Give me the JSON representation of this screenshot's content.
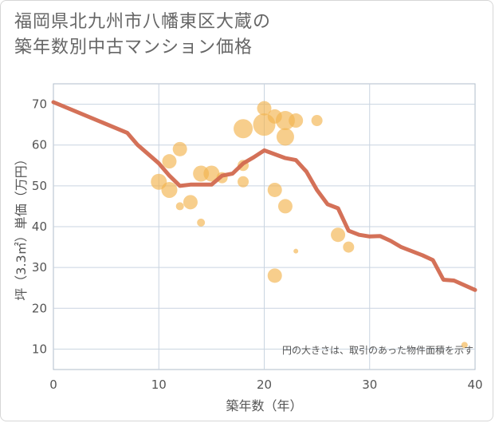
{
  "chart_data": {
    "type": "scatter",
    "title_line1": "福岡県北九州市八幡東区大蔵の",
    "title_line2": "築年数別中古マンション価格",
    "xlabel": "築年数（年）",
    "ylabel": "坪（3.3㎡）単価（万円）",
    "xlim": [
      0,
      40
    ],
    "ylim": [
      5,
      75
    ],
    "xticks": [
      "0",
      "10",
      "20",
      "30",
      "40"
    ],
    "yticks": [
      "10",
      "20",
      "30",
      "40",
      "50",
      "60",
      "70"
    ],
    "note": "円の大きさは、取引のあった物件面積を示す",
    "grid": true,
    "colors": {
      "bubble": "#f2b44f",
      "line": "#d2694f",
      "grid": "#c9d4e0",
      "frame": "#b0bccb"
    },
    "bubbles": [
      {
        "x": 10,
        "y": 51,
        "size": 10
      },
      {
        "x": 11,
        "y": 56,
        "size": 9
      },
      {
        "x": 11,
        "y": 49,
        "size": 10
      },
      {
        "x": 12,
        "y": 59,
        "size": 9
      },
      {
        "x": 12,
        "y": 45,
        "size": 5
      },
      {
        "x": 13,
        "y": 46,
        "size": 9
      },
      {
        "x": 14,
        "y": 53,
        "size": 10
      },
      {
        "x": 14,
        "y": 41,
        "size": 5
      },
      {
        "x": 15,
        "y": 53,
        "size": 10
      },
      {
        "x": 16,
        "y": 52,
        "size": 7
      },
      {
        "x": 18,
        "y": 64,
        "size": 12
      },
      {
        "x": 18,
        "y": 55,
        "size": 7
      },
      {
        "x": 18,
        "y": 51,
        "size": 7
      },
      {
        "x": 20,
        "y": 69,
        "size": 9
      },
      {
        "x": 20,
        "y": 65,
        "size": 14
      },
      {
        "x": 21,
        "y": 67,
        "size": 9
      },
      {
        "x": 21,
        "y": 49,
        "size": 9
      },
      {
        "x": 21,
        "y": 28,
        "size": 9
      },
      {
        "x": 22,
        "y": 66,
        "size": 12
      },
      {
        "x": 22,
        "y": 62,
        "size": 11
      },
      {
        "x": 22,
        "y": 45,
        "size": 9
      },
      {
        "x": 23,
        "y": 66,
        "size": 9
      },
      {
        "x": 23,
        "y": 34,
        "size": 3
      },
      {
        "x": 25,
        "y": 66,
        "size": 7
      },
      {
        "x": 27,
        "y": 38,
        "size": 9
      },
      {
        "x": 28,
        "y": 35,
        "size": 7
      },
      {
        "x": 39,
        "y": 11,
        "size": 4
      }
    ],
    "trend": [
      {
        "x": 0,
        "y": 70.5
      },
      {
        "x": 7,
        "y": 63
      },
      {
        "x": 8,
        "y": 60
      },
      {
        "x": 10,
        "y": 55.5
      },
      {
        "x": 11,
        "y": 52.5
      },
      {
        "x": 12,
        "y": 50
      },
      {
        "x": 13,
        "y": 50.3
      },
      {
        "x": 15,
        "y": 50.3
      },
      {
        "x": 16,
        "y": 52.5
      },
      {
        "x": 17,
        "y": 53
      },
      {
        "x": 18,
        "y": 55.5
      },
      {
        "x": 19,
        "y": 57
      },
      {
        "x": 20,
        "y": 58.7
      },
      {
        "x": 22,
        "y": 56.8
      },
      {
        "x": 23,
        "y": 56.3
      },
      {
        "x": 24,
        "y": 53.5
      },
      {
        "x": 25,
        "y": 49
      },
      {
        "x": 26,
        "y": 45.5
      },
      {
        "x": 27,
        "y": 44.5
      },
      {
        "x": 28,
        "y": 39
      },
      {
        "x": 29,
        "y": 38
      },
      {
        "x": 30,
        "y": 37.6
      },
      {
        "x": 31,
        "y": 37.7
      },
      {
        "x": 32,
        "y": 36.5
      },
      {
        "x": 33,
        "y": 35
      },
      {
        "x": 35,
        "y": 33
      },
      {
        "x": 36,
        "y": 31.8
      },
      {
        "x": 37,
        "y": 27
      },
      {
        "x": 38,
        "y": 26.8
      },
      {
        "x": 40,
        "y": 24.5
      }
    ]
  }
}
